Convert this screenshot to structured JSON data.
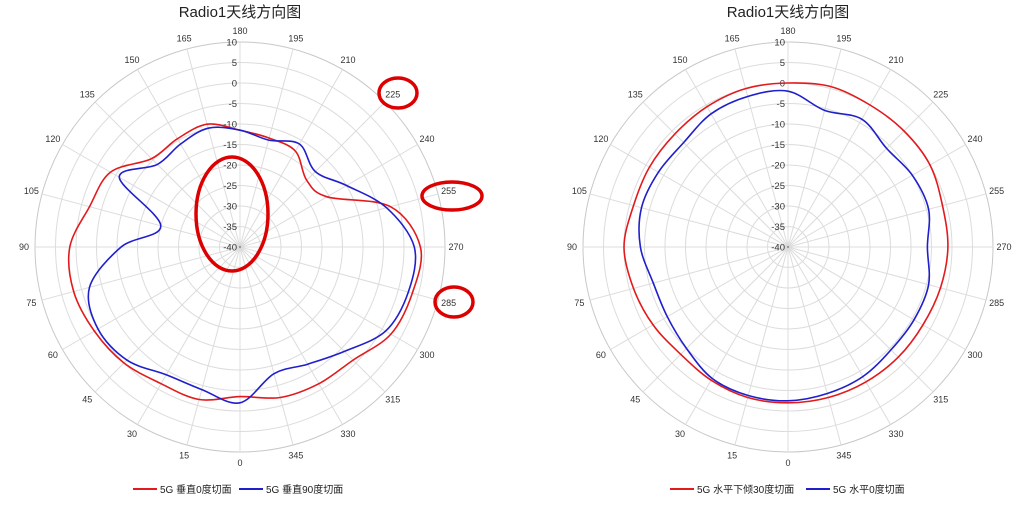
{
  "chart_data": [
    {
      "type": "polar-line",
      "title": "Radio1天线方向图",
      "angle_ticks": [
        "0",
        "15",
        "30",
        "45",
        "60",
        "75",
        "90",
        "105",
        "120",
        "135",
        "150",
        "165",
        "180",
        "195",
        "210",
        "225",
        "240",
        "255",
        "270",
        "285",
        "300",
        "315",
        "330",
        "345"
      ],
      "r_ticks": [
        "10",
        "5",
        "0",
        "-5",
        "-10",
        "-15",
        "-20",
        "-25",
        "-30",
        "-35",
        "-40"
      ],
      "rlim": [
        -40,
        10
      ],
      "angle_direction": "clockwise",
      "zero_at": "bottom",
      "legend_position": "bottom",
      "grid": true,
      "angles": [
        0,
        15,
        30,
        45,
        60,
        75,
        90,
        105,
        120,
        135,
        150,
        165,
        180,
        195,
        210,
        225,
        240,
        255,
        270,
        285,
        300,
        315,
        330,
        345
      ],
      "series": [
        {
          "name": "5G 垂直0度切面",
          "color": "#e31a1c",
          "values": [
            -3.5,
            -1.5,
            -1.5,
            0,
            1,
            2,
            1.5,
            -2,
            -3.5,
            -9.5,
            -9.5,
            -9,
            -11.5,
            -12.5,
            -13,
            -17,
            -15.5,
            -2,
            4,
            3.5,
            2.5,
            -1,
            -1.5,
            -2
          ]
        },
        {
          "name": "5G 垂直90度切面",
          "color": "#1f1fcc",
          "values": [
            -2,
            -4,
            -4,
            -1,
            0,
            -2,
            -11,
            -20,
            -6,
            -11.5,
            -11,
            -10,
            -11.5,
            -13,
            -11,
            -14,
            -10,
            -3,
            2.5,
            2.5,
            1,
            -4,
            -7,
            -8
          ]
        }
      ]
    },
    {
      "type": "polar-line",
      "title": "Radio1天线方向图",
      "angle_ticks": [
        "0",
        "15",
        "30",
        "45",
        "60",
        "75",
        "90",
        "105",
        "120",
        "135",
        "150",
        "165",
        "180",
        "195",
        "210",
        "225",
        "240",
        "255",
        "270",
        "285",
        "300",
        "315",
        "330",
        "345"
      ],
      "r_ticks": [
        "10",
        "5",
        "0",
        "-5",
        "-10",
        "-15",
        "-20",
        "-25",
        "-30",
        "-35",
        "-40"
      ],
      "rlim": [
        -40,
        10
      ],
      "angle_direction": "clockwise",
      "zero_at": "bottom",
      "legend_position": "bottom",
      "grid": true,
      "angles": [
        0,
        15,
        30,
        45,
        60,
        75,
        90,
        105,
        120,
        135,
        150,
        165,
        180,
        195,
        210,
        225,
        240,
        255,
        270,
        285,
        300,
        315,
        330,
        345
      ],
      "series": [
        {
          "name": "5G 水平下倾30度切面",
          "color": "#e31a1c",
          "values": [
            -2,
            -2,
            -2.5,
            -3,
            -2,
            -1,
            0,
            -1,
            -1,
            -1,
            -0.5,
            0,
            0,
            0.5,
            0,
            0,
            0,
            -1,
            -1,
            -1.5,
            -2,
            -2,
            -2,
            -2
          ]
        },
        {
          "name": "5G 水平0度切面",
          "color": "#1f1fcc",
          "values": [
            -2.5,
            -2.5,
            -3,
            -5,
            -6,
            -6,
            -4,
            -3,
            -3.5,
            -4,
            -2.5,
            -2,
            -2,
            -5.5,
            -4,
            -6,
            -5,
            -4.5,
            -6,
            -4.5,
            -4.5,
            -4.5,
            -3.5,
            -3
          ]
        }
      ]
    }
  ]
}
